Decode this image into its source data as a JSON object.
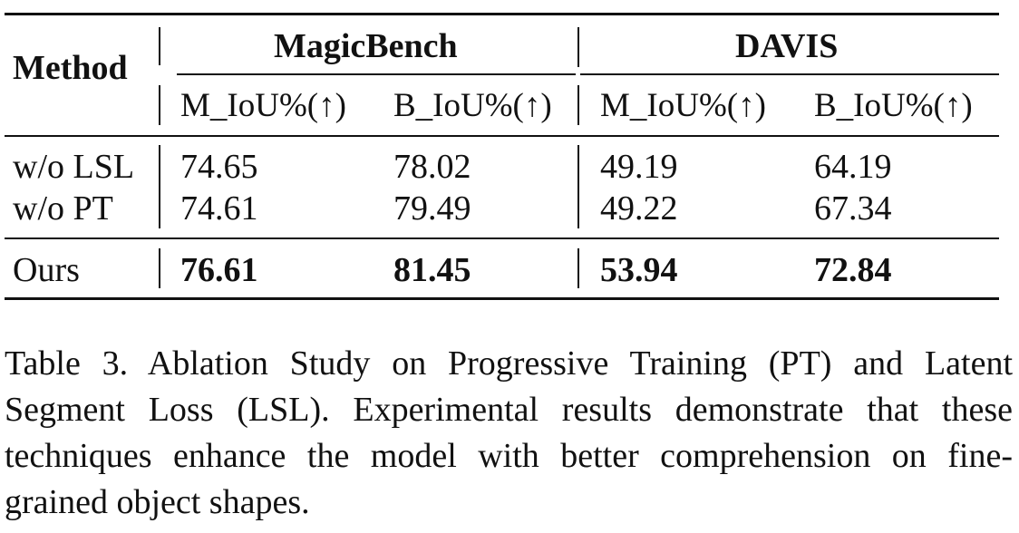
{
  "table": {
    "method_header": "Method",
    "groups": [
      {
        "name": "MagicBench",
        "metrics": [
          "M_IoU%(↑)",
          "B_IoU%(↑)"
        ]
      },
      {
        "name": "DAVIS",
        "metrics": [
          "M_IoU%(↑)",
          "B_IoU%(↑)"
        ]
      }
    ],
    "rows": [
      {
        "method": "w/o LSL",
        "values": [
          "74.65",
          "78.02",
          "49.19",
          "64.19"
        ],
        "bold": false
      },
      {
        "method": "w/o PT",
        "values": [
          "74.61",
          "79.49",
          "49.22",
          "67.34"
        ],
        "bold": false
      },
      {
        "method": "Ours",
        "values": [
          "76.61",
          "81.45",
          "53.94",
          "72.84"
        ],
        "bold": true
      }
    ]
  },
  "caption": "Table 3. Ablation Study on Progressive Training (PT) and Latent Segment Loss (LSL). Experimental results demonstrate that these techniques enhance the model with better comprehension on fine-grained object shapes."
}
